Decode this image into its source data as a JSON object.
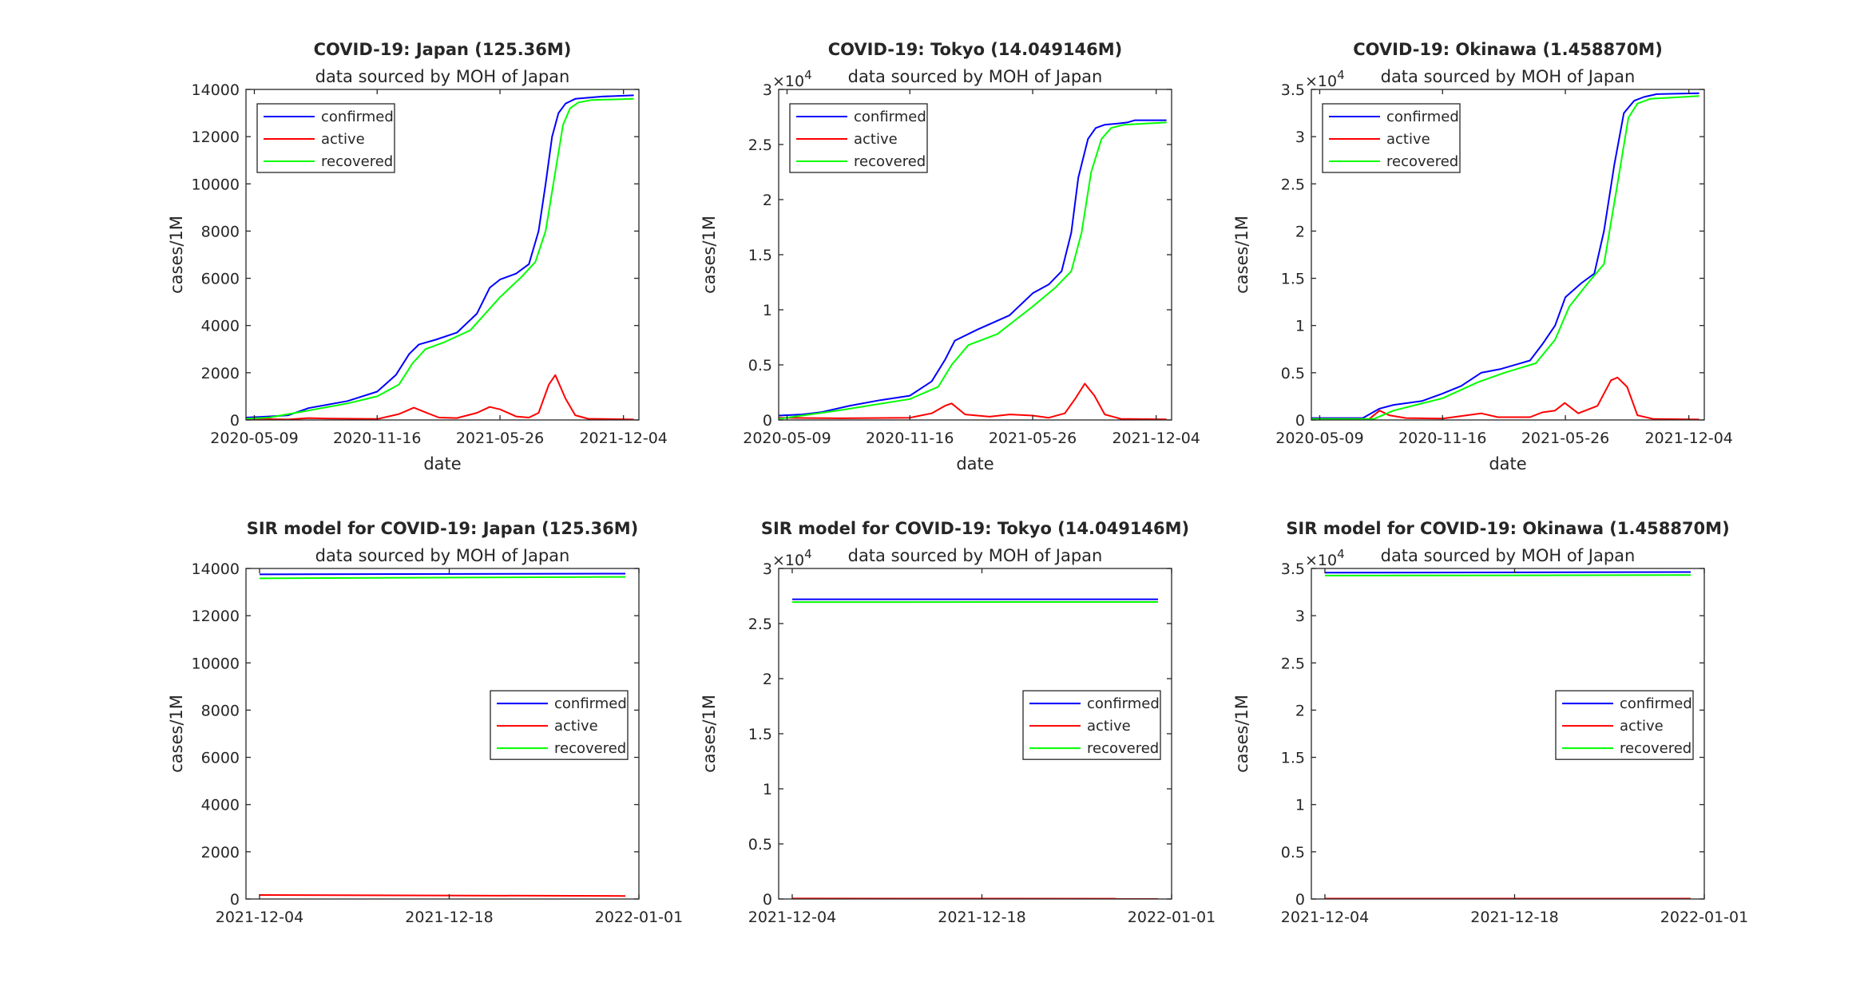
{
  "figure": {
    "colors": {
      "confirmed": "#0000ff",
      "active": "#ff0000",
      "recovered": "#00ff00",
      "axis": "#262626"
    }
  },
  "chart_data": [
    {
      "type": "line",
      "title": "COVID-19: Japan (125.36M)",
      "subtitle": "data sourced by MOH of Japan",
      "xlabel": "date",
      "ylabel": "cases/1M",
      "exponent": "",
      "xlim": [
        "2020-04-26",
        "2021-12-28"
      ],
      "ylim": [
        0,
        14000
      ],
      "x_ticks": [
        "2020-05-09",
        "2020-11-16",
        "2021-05-26",
        "2021-12-04"
      ],
      "y_ticks": [
        "0",
        "2000",
        "4000",
        "6000",
        "8000",
        "10000",
        "12000",
        "14000"
      ],
      "legend_position": "top-left",
      "series": [
        {
          "name": "confirmed",
          "color": "#0000ff",
          "x": [
            "2020-04-26",
            "2020-06-01",
            "2020-07-01",
            "2020-08-01",
            "2020-10-01",
            "2020-11-16",
            "2020-12-15",
            "2021-01-05",
            "2021-01-20",
            "2021-02-15",
            "2021-03-20",
            "2021-04-20",
            "2021-05-10",
            "2021-05-26",
            "2021-06-20",
            "2021-07-10",
            "2021-07-25",
            "2021-08-05",
            "2021-08-15",
            "2021-08-25",
            "2021-09-05",
            "2021-09-20",
            "2021-10-10",
            "2021-11-01",
            "2021-12-20"
          ],
          "y": [
            100,
            150,
            200,
            500,
            800,
            1200,
            1900,
            2800,
            3200,
            3400,
            3700,
            4500,
            5600,
            5950,
            6200,
            6600,
            8000,
            10000,
            12000,
            13000,
            13400,
            13600,
            13650,
            13700,
            13750
          ]
        },
        {
          "name": "active",
          "color": "#ff0000",
          "x": [
            "2020-04-26",
            "2020-07-01",
            "2020-08-01",
            "2020-09-01",
            "2020-11-16",
            "2020-12-20",
            "2021-01-12",
            "2021-02-01",
            "2021-02-20",
            "2021-03-20",
            "2021-04-20",
            "2021-05-10",
            "2021-05-26",
            "2021-06-20",
            "2021-07-10",
            "2021-07-25",
            "2021-08-10",
            "2021-08-20",
            "2021-09-05",
            "2021-09-20",
            "2021-10-10",
            "2021-12-20"
          ],
          "y": [
            50,
            20,
            80,
            60,
            40,
            250,
            520,
            300,
            100,
            80,
            300,
            550,
            450,
            150,
            100,
            300,
            1500,
            1900,
            900,
            200,
            50,
            20
          ]
        },
        {
          "name": "recovered",
          "color": "#00ff00",
          "x": [
            "2020-04-26",
            "2020-06-01",
            "2020-08-01",
            "2020-10-01",
            "2020-11-16",
            "2020-12-20",
            "2021-01-10",
            "2021-01-30",
            "2021-03-01",
            "2021-04-10",
            "2021-05-26",
            "2021-06-30",
            "2021-07-20",
            "2021-08-05",
            "2021-08-20",
            "2021-09-01",
            "2021-09-12",
            "2021-09-25",
            "2021-10-15",
            "2021-12-20"
          ],
          "y": [
            50,
            100,
            400,
            700,
            1000,
            1500,
            2400,
            3000,
            3300,
            3800,
            5200,
            6100,
            6700,
            8000,
            10500,
            12500,
            13200,
            13450,
            13550,
            13600
          ]
        }
      ]
    },
    {
      "type": "line",
      "title": "COVID-19: Tokyo (14.049146M)",
      "subtitle": "data sourced by MOH of Japan",
      "xlabel": "date",
      "ylabel": "cases/1M",
      "exponent": "4",
      "xlim": [
        "2020-04-26",
        "2021-12-28"
      ],
      "ylim": [
        0,
        30000
      ],
      "x_ticks": [
        "2020-05-09",
        "2020-11-16",
        "2021-05-26",
        "2021-12-04"
      ],
      "y_ticks": [
        "0",
        "0.5",
        "1",
        "1.5",
        "2",
        "2.5",
        "3"
      ],
      "legend_position": "top-left",
      "series": [
        {
          "name": "confirmed",
          "color": "#0000ff",
          "x": [
            "2020-04-26",
            "2020-06-01",
            "2020-07-01",
            "2020-08-15",
            "2020-10-01",
            "2020-11-16",
            "2020-12-20",
            "2021-01-10",
            "2021-01-25",
            "2021-03-01",
            "2021-04-20",
            "2021-05-26",
            "2021-06-20",
            "2021-07-10",
            "2021-07-25",
            "2021-08-05",
            "2021-08-20",
            "2021-09-01",
            "2021-09-15",
            "2021-10-05",
            "2021-10-20",
            "2021-11-01",
            "2021-12-20"
          ],
          "y": [
            400,
            500,
            700,
            1300,
            1800,
            2200,
            3500,
            5500,
            7200,
            8200,
            9500,
            11500,
            12300,
            13500,
            17000,
            22000,
            25500,
            26500,
            26800,
            26900,
            27000,
            27200,
            27200
          ]
        },
        {
          "name": "active",
          "color": "#ff0000",
          "x": [
            "2020-04-26",
            "2020-08-01",
            "2020-11-16",
            "2020-12-20",
            "2021-01-10",
            "2021-01-20",
            "2021-02-10",
            "2021-03-20",
            "2021-04-20",
            "2021-05-26",
            "2021-06-20",
            "2021-07-15",
            "2021-08-01",
            "2021-08-15",
            "2021-08-30",
            "2021-09-15",
            "2021-10-10",
            "2021-12-20"
          ],
          "y": [
            200,
            150,
            200,
            600,
            1300,
            1500,
            500,
            300,
            500,
            400,
            200,
            600,
            2000,
            3300,
            2200,
            500,
            100,
            50
          ]
        },
        {
          "name": "recovered",
          "color": "#00ff00",
          "x": [
            "2020-04-26",
            "2020-08-01",
            "2020-11-16",
            "2020-12-30",
            "2021-01-20",
            "2021-02-15",
            "2021-04-01",
            "2021-05-26",
            "2021-06-30",
            "2021-07-25",
            "2021-08-10",
            "2021-08-25",
            "2021-09-10",
            "2021-09-25",
            "2021-10-15",
            "2021-12-20"
          ],
          "y": [
            100,
            900,
            1900,
            3000,
            5000,
            6800,
            7800,
            10300,
            12000,
            13500,
            17000,
            22500,
            25500,
            26500,
            26800,
            27000
          ]
        }
      ]
    },
    {
      "type": "line",
      "title": "COVID-19: Okinawa (1.458870M)",
      "subtitle": "data sourced by MOH of Japan",
      "xlabel": "date",
      "ylabel": "cases/1M",
      "exponent": "4",
      "xlim": [
        "2020-04-26",
        "2021-12-28"
      ],
      "ylim": [
        0,
        35000
      ],
      "x_ticks": [
        "2020-05-09",
        "2020-11-16",
        "2021-05-26",
        "2021-12-04"
      ],
      "y_ticks": [
        "0",
        "0.5",
        "1",
        "1.5",
        "2",
        "2.5",
        "3",
        "3.5"
      ],
      "legend_position": "top-left",
      "series": [
        {
          "name": "confirmed",
          "color": "#0000ff",
          "x": [
            "2020-04-26",
            "2020-07-15",
            "2020-08-10",
            "2020-09-01",
            "2020-10-15",
            "2020-11-16",
            "2020-12-15",
            "2021-01-15",
            "2021-02-15",
            "2021-04-01",
            "2021-04-20",
            "2021-05-10",
            "2021-05-26",
            "2021-06-20",
            "2021-07-10",
            "2021-07-25",
            "2021-08-10",
            "2021-08-25",
            "2021-09-10",
            "2021-09-25",
            "2021-10-15",
            "2021-12-20"
          ],
          "y": [
            200,
            200,
            1200,
            1600,
            2000,
            2800,
            3600,
            5000,
            5400,
            6300,
            8000,
            10000,
            13000,
            14500,
            15500,
            20000,
            27000,
            32500,
            33800,
            34200,
            34500,
            34600
          ]
        },
        {
          "name": "active",
          "color": "#ff0000",
          "x": [
            "2020-04-26",
            "2020-07-25",
            "2020-08-10",
            "2020-08-25",
            "2020-09-20",
            "2020-11-16",
            "2021-01-15",
            "2021-02-10",
            "2021-04-01",
            "2021-04-20",
            "2021-05-10",
            "2021-05-25",
            "2021-06-15",
            "2021-07-15",
            "2021-08-05",
            "2021-08-15",
            "2021-08-30",
            "2021-09-15",
            "2021-10-10",
            "2021-12-20"
          ],
          "y": [
            100,
            100,
            1000,
            500,
            200,
            150,
            700,
            300,
            300,
            800,
            1000,
            1800,
            700,
            1500,
            4200,
            4500,
            3500,
            500,
            100,
            50
          ]
        },
        {
          "name": "recovered",
          "color": "#00ff00",
          "x": [
            "2020-04-26",
            "2020-08-01",
            "2020-09-01",
            "2020-11-16",
            "2021-01-10",
            "2021-02-20",
            "2021-04-10",
            "2021-05-10",
            "2021-06-01",
            "2021-06-30",
            "2021-07-25",
            "2021-08-15",
            "2021-09-01",
            "2021-09-15",
            "2021-10-05",
            "2021-12-20"
          ],
          "y": [
            100,
            100,
            1000,
            2300,
            4000,
            5000,
            6000,
            8500,
            12000,
            14500,
            16500,
            25000,
            32000,
            33500,
            34000,
            34300
          ]
        }
      ]
    },
    {
      "type": "line",
      "title": "SIR model for COVID-19: Japan (125.36M)",
      "subtitle": "data sourced by MOH of Japan",
      "xlabel": "",
      "ylabel": "cases/1M",
      "exponent": "",
      "xlim": [
        "2021-12-03",
        "2022-01-01"
      ],
      "ylim": [
        0,
        14000
      ],
      "x_ticks": [
        "2021-12-04",
        "2021-12-18",
        "2022-01-01"
      ],
      "y_ticks": [
        "0",
        "2000",
        "4000",
        "6000",
        "8000",
        "10000",
        "12000",
        "14000"
      ],
      "legend_position": "right",
      "series": [
        {
          "name": "confirmed",
          "color": "#0000ff",
          "x": [
            "2021-12-04",
            "2021-12-31"
          ],
          "y": [
            13750,
            13780
          ]
        },
        {
          "name": "active",
          "color": "#ff0000",
          "x": [
            "2021-12-04",
            "2021-12-31"
          ],
          "y": [
            170,
            130
          ]
        },
        {
          "name": "recovered",
          "color": "#00ff00",
          "x": [
            "2021-12-04",
            "2021-12-31"
          ],
          "y": [
            13580,
            13640
          ]
        }
      ]
    },
    {
      "type": "line",
      "title": "SIR model for COVID-19: Tokyo (14.049146M)",
      "subtitle": "data sourced by MOH of Japan",
      "xlabel": "",
      "ylabel": "cases/1M",
      "exponent": "4",
      "xlim": [
        "2021-12-03",
        "2022-01-01"
      ],
      "ylim": [
        0,
        30000
      ],
      "x_ticks": [
        "2021-12-04",
        "2021-12-18",
        "2022-01-01"
      ],
      "y_ticks": [
        "0",
        "0.5",
        "1",
        "1.5",
        "2",
        "2.5",
        "3"
      ],
      "legend_position": "right",
      "series": [
        {
          "name": "confirmed",
          "color": "#0000ff",
          "x": [
            "2021-12-04",
            "2021-12-31"
          ],
          "y": [
            27200,
            27200
          ]
        },
        {
          "name": "active",
          "color": "#ff0000",
          "x": [
            "2021-12-04",
            "2021-12-31"
          ],
          "y": [
            40,
            30
          ]
        },
        {
          "name": "recovered",
          "color": "#00ff00",
          "x": [
            "2021-12-04",
            "2021-12-31"
          ],
          "y": [
            26950,
            26960
          ]
        }
      ]
    },
    {
      "type": "line",
      "title": "SIR model for COVID-19: Okinawa (1.458870M)",
      "subtitle": "data sourced by MOH of Japan",
      "xlabel": "",
      "ylabel": "cases/1M",
      "exponent": "4",
      "xlim": [
        "2021-12-03",
        "2022-01-01"
      ],
      "ylim": [
        0,
        35000
      ],
      "x_ticks": [
        "2021-12-04",
        "2021-12-18",
        "2022-01-01"
      ],
      "y_ticks": [
        "0",
        "0.5",
        "1",
        "1.5",
        "2",
        "2.5",
        "3",
        "3.5"
      ],
      "legend_position": "right",
      "series": [
        {
          "name": "confirmed",
          "color": "#0000ff",
          "x": [
            "2021-12-04",
            "2021-12-31"
          ],
          "y": [
            34550,
            34620
          ]
        },
        {
          "name": "active",
          "color": "#ff0000",
          "x": [
            "2021-12-04",
            "2021-12-31"
          ],
          "y": [
            40,
            40
          ]
        },
        {
          "name": "recovered",
          "color": "#00ff00",
          "x": [
            "2021-12-04",
            "2021-12-31"
          ],
          "y": [
            34250,
            34300
          ]
        }
      ]
    }
  ]
}
